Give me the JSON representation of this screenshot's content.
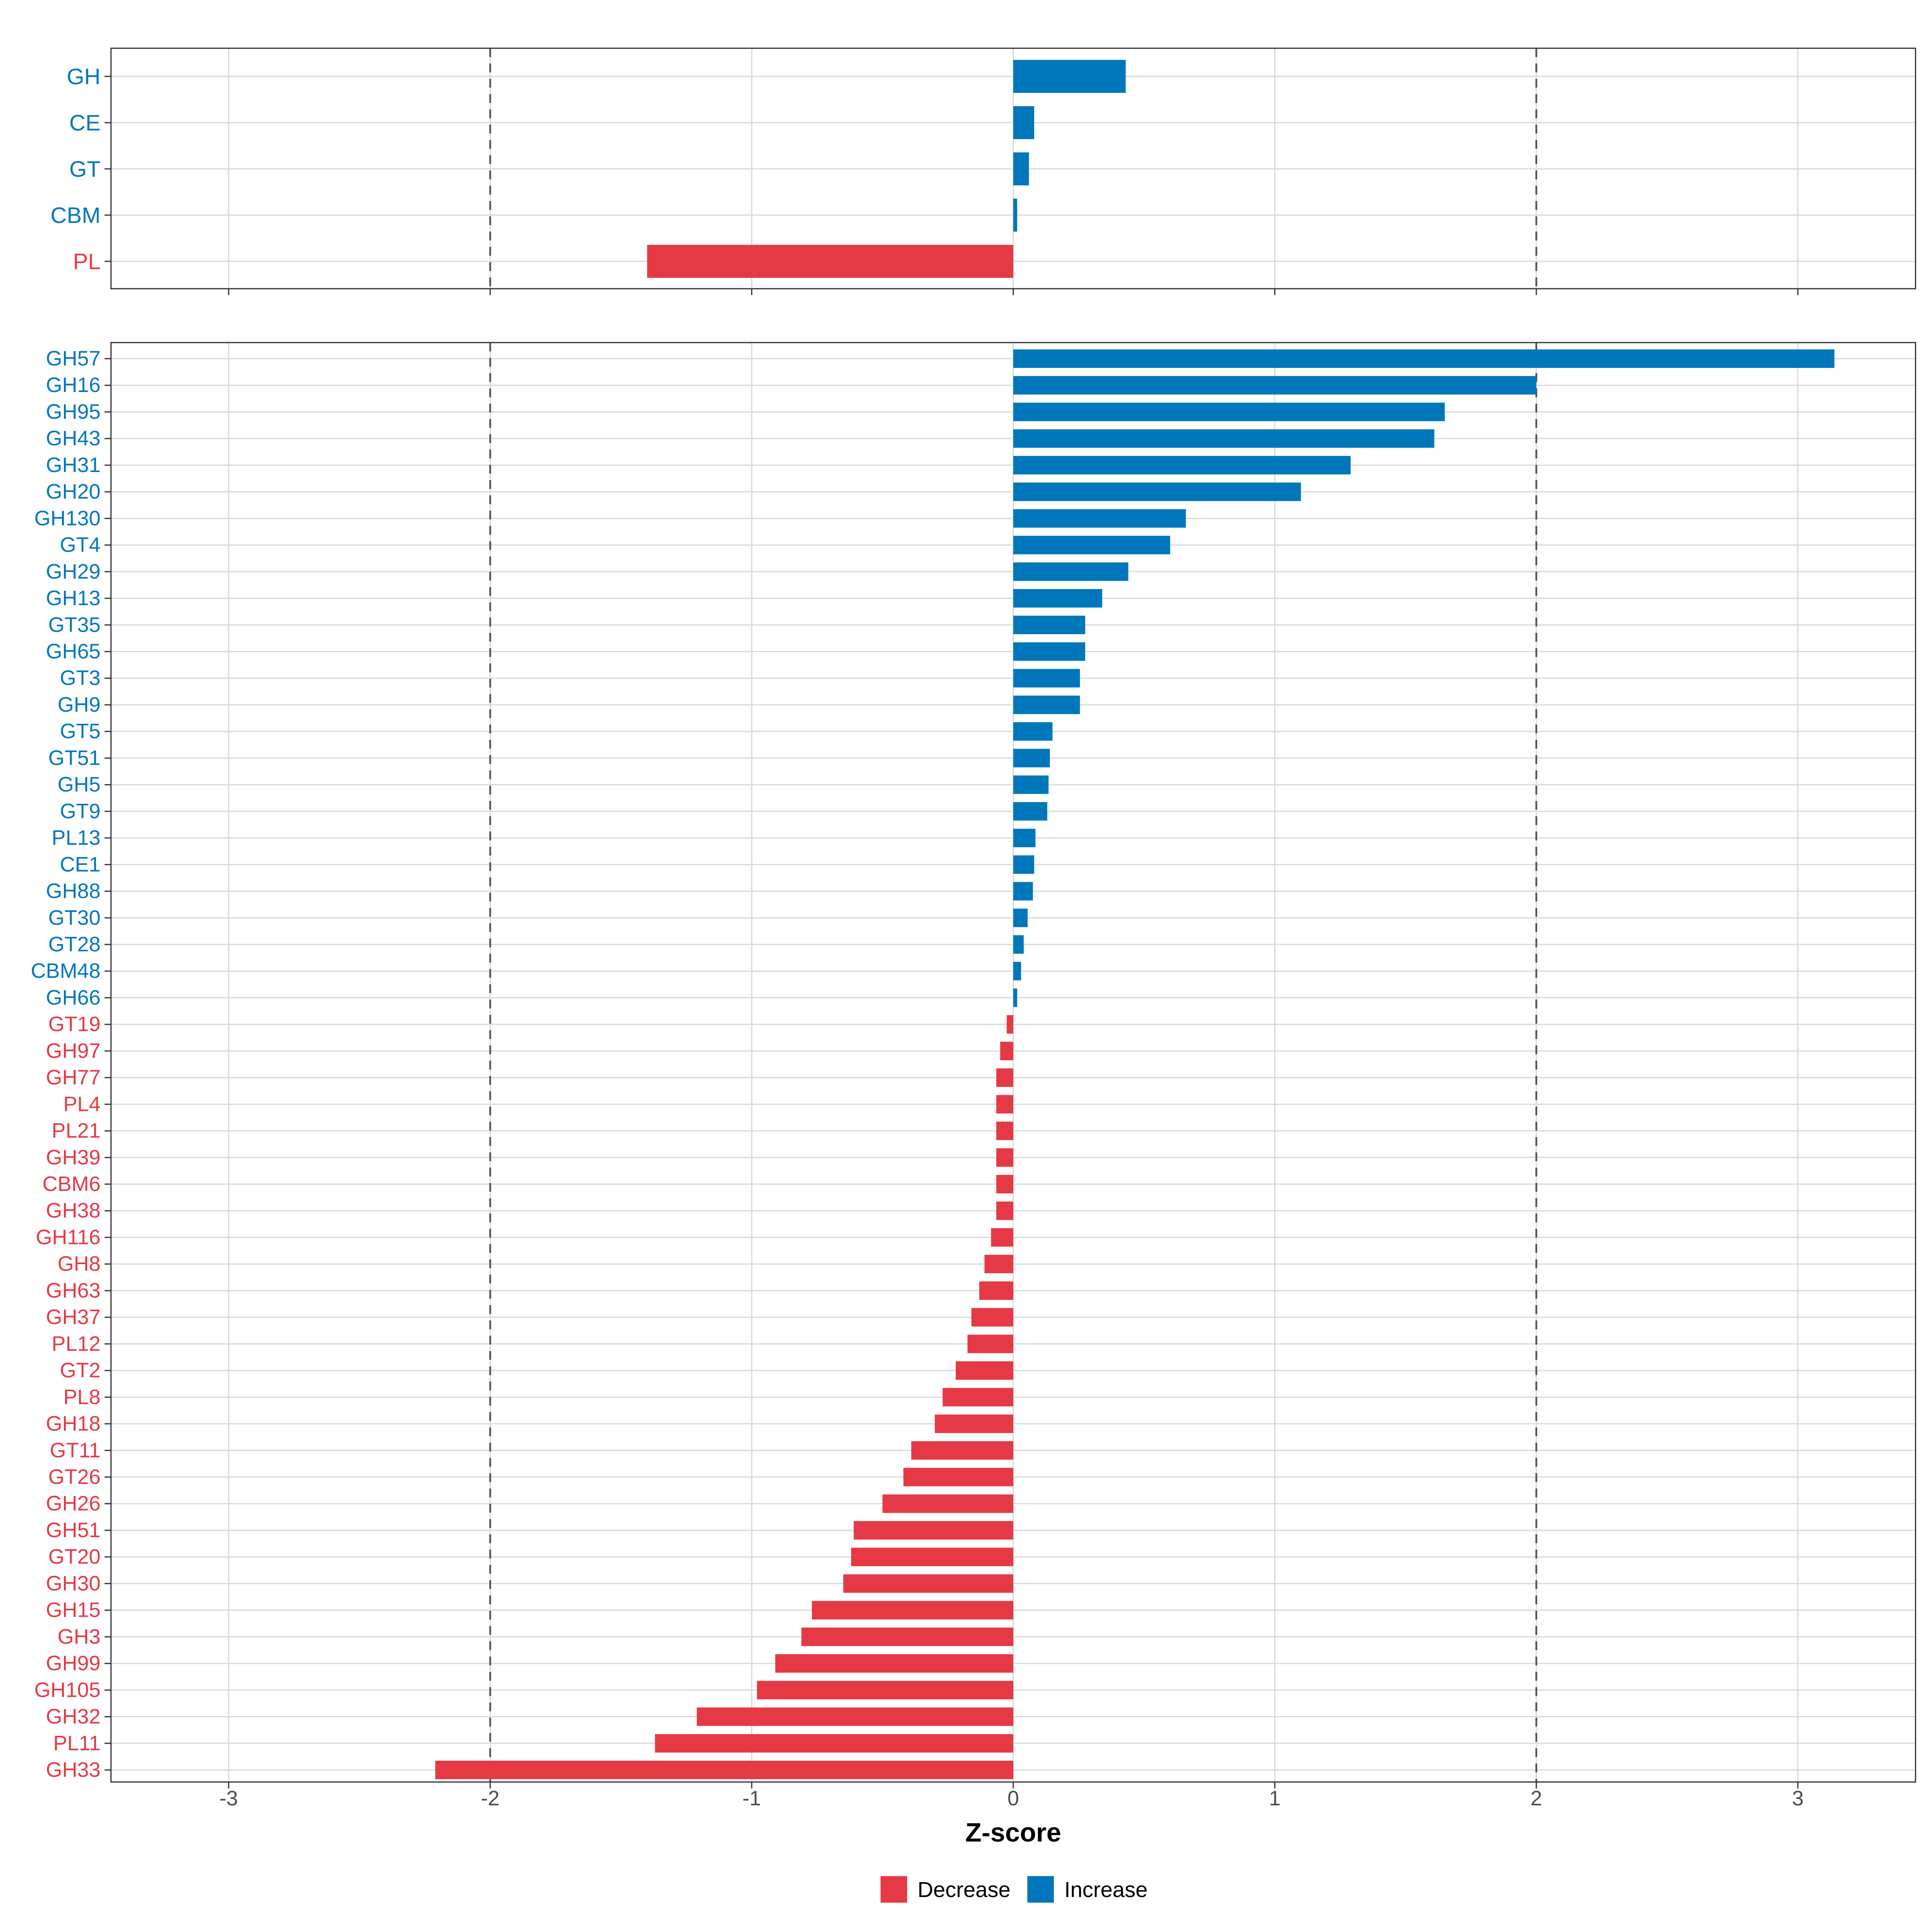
{
  "colors": {
    "increase": "#0077BB",
    "decrease": "#E63946",
    "grid": "#D9D9D9",
    "ref_line": "#555555",
    "panel_border": "#333333",
    "axis_text": "#4D4D4D"
  },
  "chart_data": [
    {
      "type": "bar",
      "orientation": "horizontal",
      "panel": "top",
      "categories": [
        "GH",
        "CE",
        "GT",
        "CBM",
        "PL"
      ],
      "values": [
        0.43,
        0.08,
        0.06,
        0.015,
        -1.4
      ],
      "directions": [
        "Increase",
        "Increase",
        "Increase",
        "Increase",
        "Decrease"
      ],
      "xlim": [
        -3.45,
        3.45
      ],
      "xticks": [
        -3,
        -2,
        -1,
        0,
        1,
        2,
        3
      ],
      "reference_lines": [
        -2,
        2
      ],
      "grid": true
    },
    {
      "type": "bar",
      "orientation": "horizontal",
      "panel": "bottom",
      "categories": [
        "GH57",
        "GH16",
        "GH95",
        "GH43",
        "GH31",
        "GH20",
        "GH130",
        "GT4",
        "GH29",
        "GH13",
        "GT35",
        "GH65",
        "GT3",
        "GH9",
        "GT5",
        "GT51",
        "GH5",
        "GT9",
        "PL13",
        "CE1",
        "GH88",
        "GT30",
        "GT28",
        "CBM48",
        "GH66",
        "GT19",
        "GH97",
        "GH77",
        "PL4",
        "PL21",
        "GH39",
        "CBM6",
        "GH38",
        "GH116",
        "GH8",
        "GH63",
        "GH37",
        "PL12",
        "GT2",
        "PL8",
        "GH18",
        "GT11",
        "GT26",
        "GH26",
        "GH51",
        "GT20",
        "GH30",
        "GH15",
        "GH3",
        "GH99",
        "GH105",
        "GH32",
        "PL11",
        "GH33"
      ],
      "values": [
        3.14,
        2.0,
        1.65,
        1.61,
        1.29,
        1.1,
        0.66,
        0.6,
        0.44,
        0.34,
        0.275,
        0.275,
        0.255,
        0.255,
        0.15,
        0.14,
        0.135,
        0.13,
        0.085,
        0.08,
        0.075,
        0.055,
        0.04,
        0.03,
        0.015,
        -0.025,
        -0.05,
        -0.065,
        -0.065,
        -0.065,
        -0.065,
        -0.065,
        -0.065,
        -0.085,
        -0.11,
        -0.13,
        -0.16,
        -0.175,
        -0.22,
        -0.27,
        -0.3,
        -0.39,
        -0.42,
        -0.5,
        -0.61,
        -0.62,
        -0.65,
        -0.77,
        -0.81,
        -0.91,
        -0.98,
        -1.21,
        -1.37,
        -2.21
      ],
      "xlim": [
        -3.45,
        3.45
      ],
      "xticks": [
        -3,
        -2,
        -1,
        0,
        1,
        2,
        3
      ],
      "tick_labels": [
        "-3",
        "-2",
        "-1",
        "0",
        "1",
        "2",
        "3"
      ],
      "reference_lines": [
        -2,
        2
      ],
      "xlabel": "Z-score",
      "grid": true
    }
  ],
  "legend": {
    "placement": "bottom",
    "items": [
      {
        "label": "Decrease",
        "color_key": "decrease"
      },
      {
        "label": "Increase",
        "color_key": "increase"
      }
    ]
  }
}
